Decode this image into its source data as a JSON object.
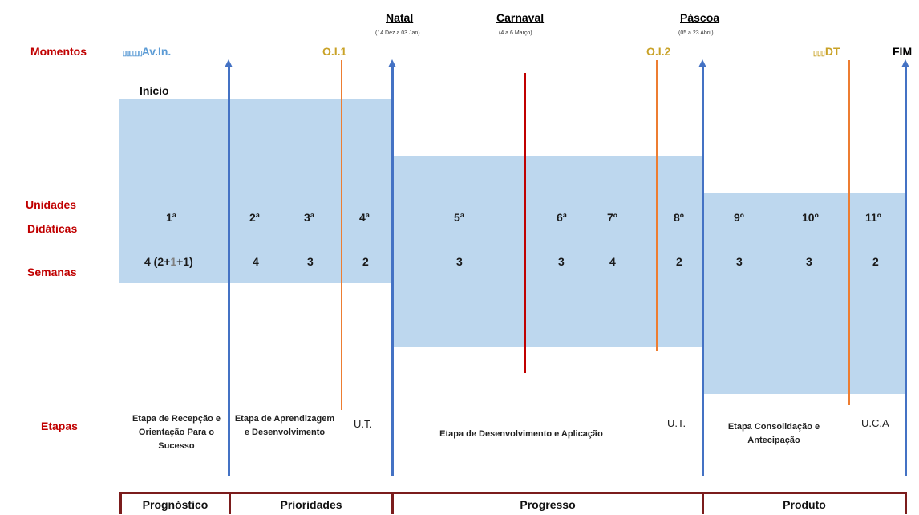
{
  "left_labels": {
    "momentos": "Momentos",
    "unidades": "Unidades",
    "didaticas": "Didáticas",
    "semanas": "Semanas",
    "etapas": "Etapas"
  },
  "moments": {
    "av_in": "Av.In.",
    "oi1": "O.I.1",
    "oi2": "O.I.2",
    "dt": "DT",
    "fim": "FIM"
  },
  "holidays": {
    "natal": "Natal",
    "natal_dates": "(14 Dez a 03 Jan)",
    "carnaval": "Carnaval",
    "carnaval_dates": "(4 a 6 Março)",
    "pascoa": "Páscoa",
    "pascoa_dates": "(05 a 23 Abril)"
  },
  "inicio": "Início",
  "units": [
    "1ª",
    "2ª",
    "3ª",
    "4ª",
    "5ª",
    "6ª",
    "7º",
    "8º",
    "9º",
    "10º",
    "11º"
  ],
  "weeks": {
    "w1_prefix": "4 (2+",
    "w1_mid": "1",
    "w1_suffix": "+1)",
    "others": [
      "4",
      "3",
      "2",
      "3",
      "3",
      "4",
      "2",
      "3",
      "3",
      "2"
    ]
  },
  "etapas": {
    "e1": "Etapa de Recepção e Orientação Para o Sucesso",
    "e2": "Etapa de Aprendizagem e Desenvolvimento",
    "ut1": "U.T.",
    "e3": "Etapa de Desenvolvimento e Aplicação",
    "ut2": "U.T.",
    "e4": "Etapa Consolidação e Antecipação",
    "uca": "U.C.A"
  },
  "phases": [
    "Prognóstico",
    "Prioridades",
    "Progresso",
    "Produto"
  ],
  "colors": {
    "band": "#bdd7ee",
    "blue_line": "#4472c4",
    "orange_line": "#ed7d31",
    "red_line": "#c00000",
    "label_red": "#c00000",
    "gold": "#c9a227",
    "light_blue_text": "#5b9bd5",
    "frame": "#7b1c1c"
  }
}
